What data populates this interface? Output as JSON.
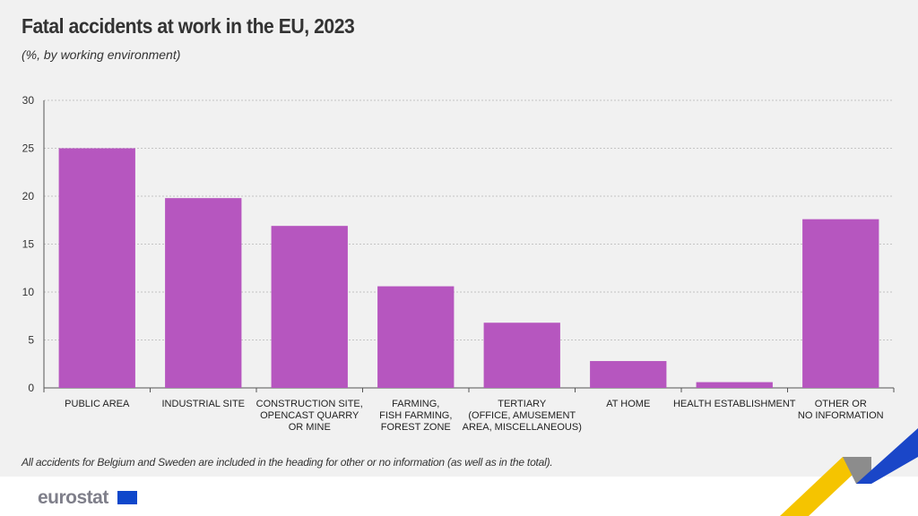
{
  "title": "Fatal accidents at work in the EU, 2023",
  "subtitle": "(%, by working environment)",
  "footnote": "All accidents for Belgium and Sweden are included in the heading for other or no information (as well as in the total).",
  "logo": "eurostat",
  "chart_data": {
    "type": "bar",
    "categories": [
      [
        "PUBLIC AREA"
      ],
      [
        "INDUSTRIAL SITE"
      ],
      [
        "CONSTRUCTION SITE,",
        "OPENCAST QUARRY",
        "OR MINE"
      ],
      [
        "FARMING,",
        "FISH FARMING,",
        "FOREST ZONE"
      ],
      [
        "TERTIARY",
        "(OFFICE, AMUSEMENT",
        "AREA, MISCELLANEOUS)"
      ],
      [
        "AT HOME"
      ],
      [
        "HEALTH ESTABLISHMENT"
      ],
      [
        "OTHER OR",
        "NO INFORMATION"
      ]
    ],
    "values": [
      25.0,
      19.8,
      16.9,
      10.6,
      6.8,
      2.8,
      0.6,
      17.6
    ],
    "ylim": [
      0,
      30
    ],
    "yticks": [
      0,
      5,
      10,
      15,
      20,
      25,
      30
    ],
    "bar_color": "#b656bf",
    "grid": true
  },
  "colors": {
    "yellow": "#f5c400",
    "blue": "#1a46c8",
    "grey": "#8c8c8c"
  }
}
